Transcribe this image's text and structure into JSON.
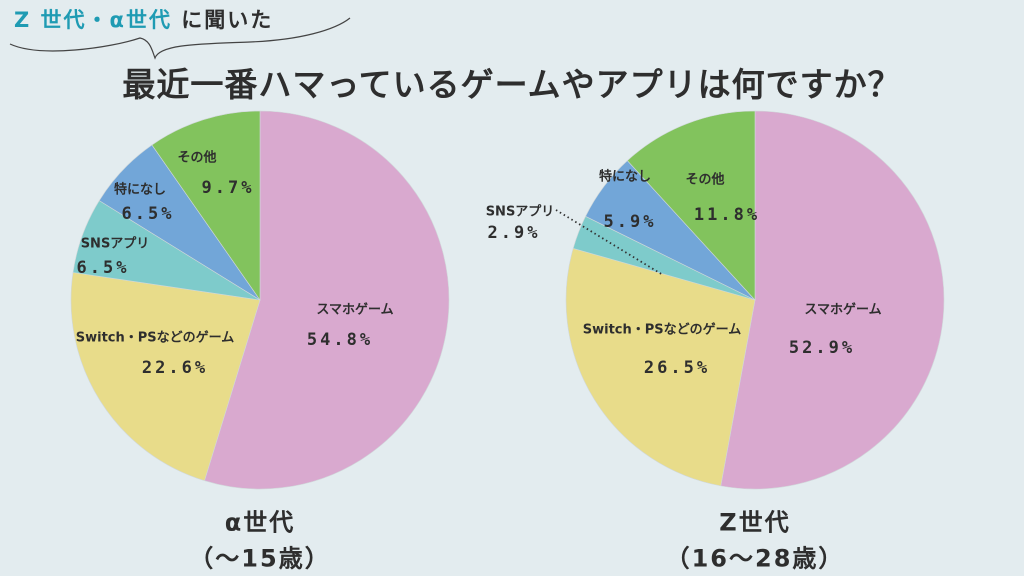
{
  "header": {
    "subtitle_highlight": "Z 世代・α世代",
    "subtitle_rest": " に聞いた",
    "title": "最近一番ハマっているゲームやアプリは何ですか？"
  },
  "colors": {
    "background": "#e3ecef",
    "accent": "#1f9bb3",
    "スマホゲーム": "#d9a9cf",
    "Switch・PSなどのゲーム": "#e8dc8a",
    "SNSアプリ": "#7ecbcb",
    "特になし": "#72a6d8",
    "その他": "#82c35d"
  },
  "chart_data": [
    {
      "type": "pie",
      "title": "α世代",
      "subtitle": "（～15歳）",
      "categories": [
        "スマホゲーム",
        "Switch・PSなどのゲーム",
        "SNSアプリ",
        "特になし",
        "その他"
      ],
      "values": [
        54.8,
        22.6,
        6.5,
        6.5,
        9.7
      ],
      "value_labels": [
        "54.8%",
        "22.6%",
        "6.5%",
        "6.5%",
        "9.7%"
      ],
      "start": "top",
      "direction": "clockwise"
    },
    {
      "type": "pie",
      "title": "Z世代",
      "subtitle": "（16～28歳）",
      "categories": [
        "スマホゲーム",
        "Switch・PSなどのゲーム",
        "SNSアプリ",
        "特になし",
        "その他"
      ],
      "values": [
        52.9,
        26.5,
        2.9,
        5.9,
        11.8
      ],
      "value_labels": [
        "52.9%",
        "26.5%",
        "2.9%",
        "5.9%",
        "11.8%"
      ],
      "start": "top",
      "direction": "clockwise"
    }
  ]
}
